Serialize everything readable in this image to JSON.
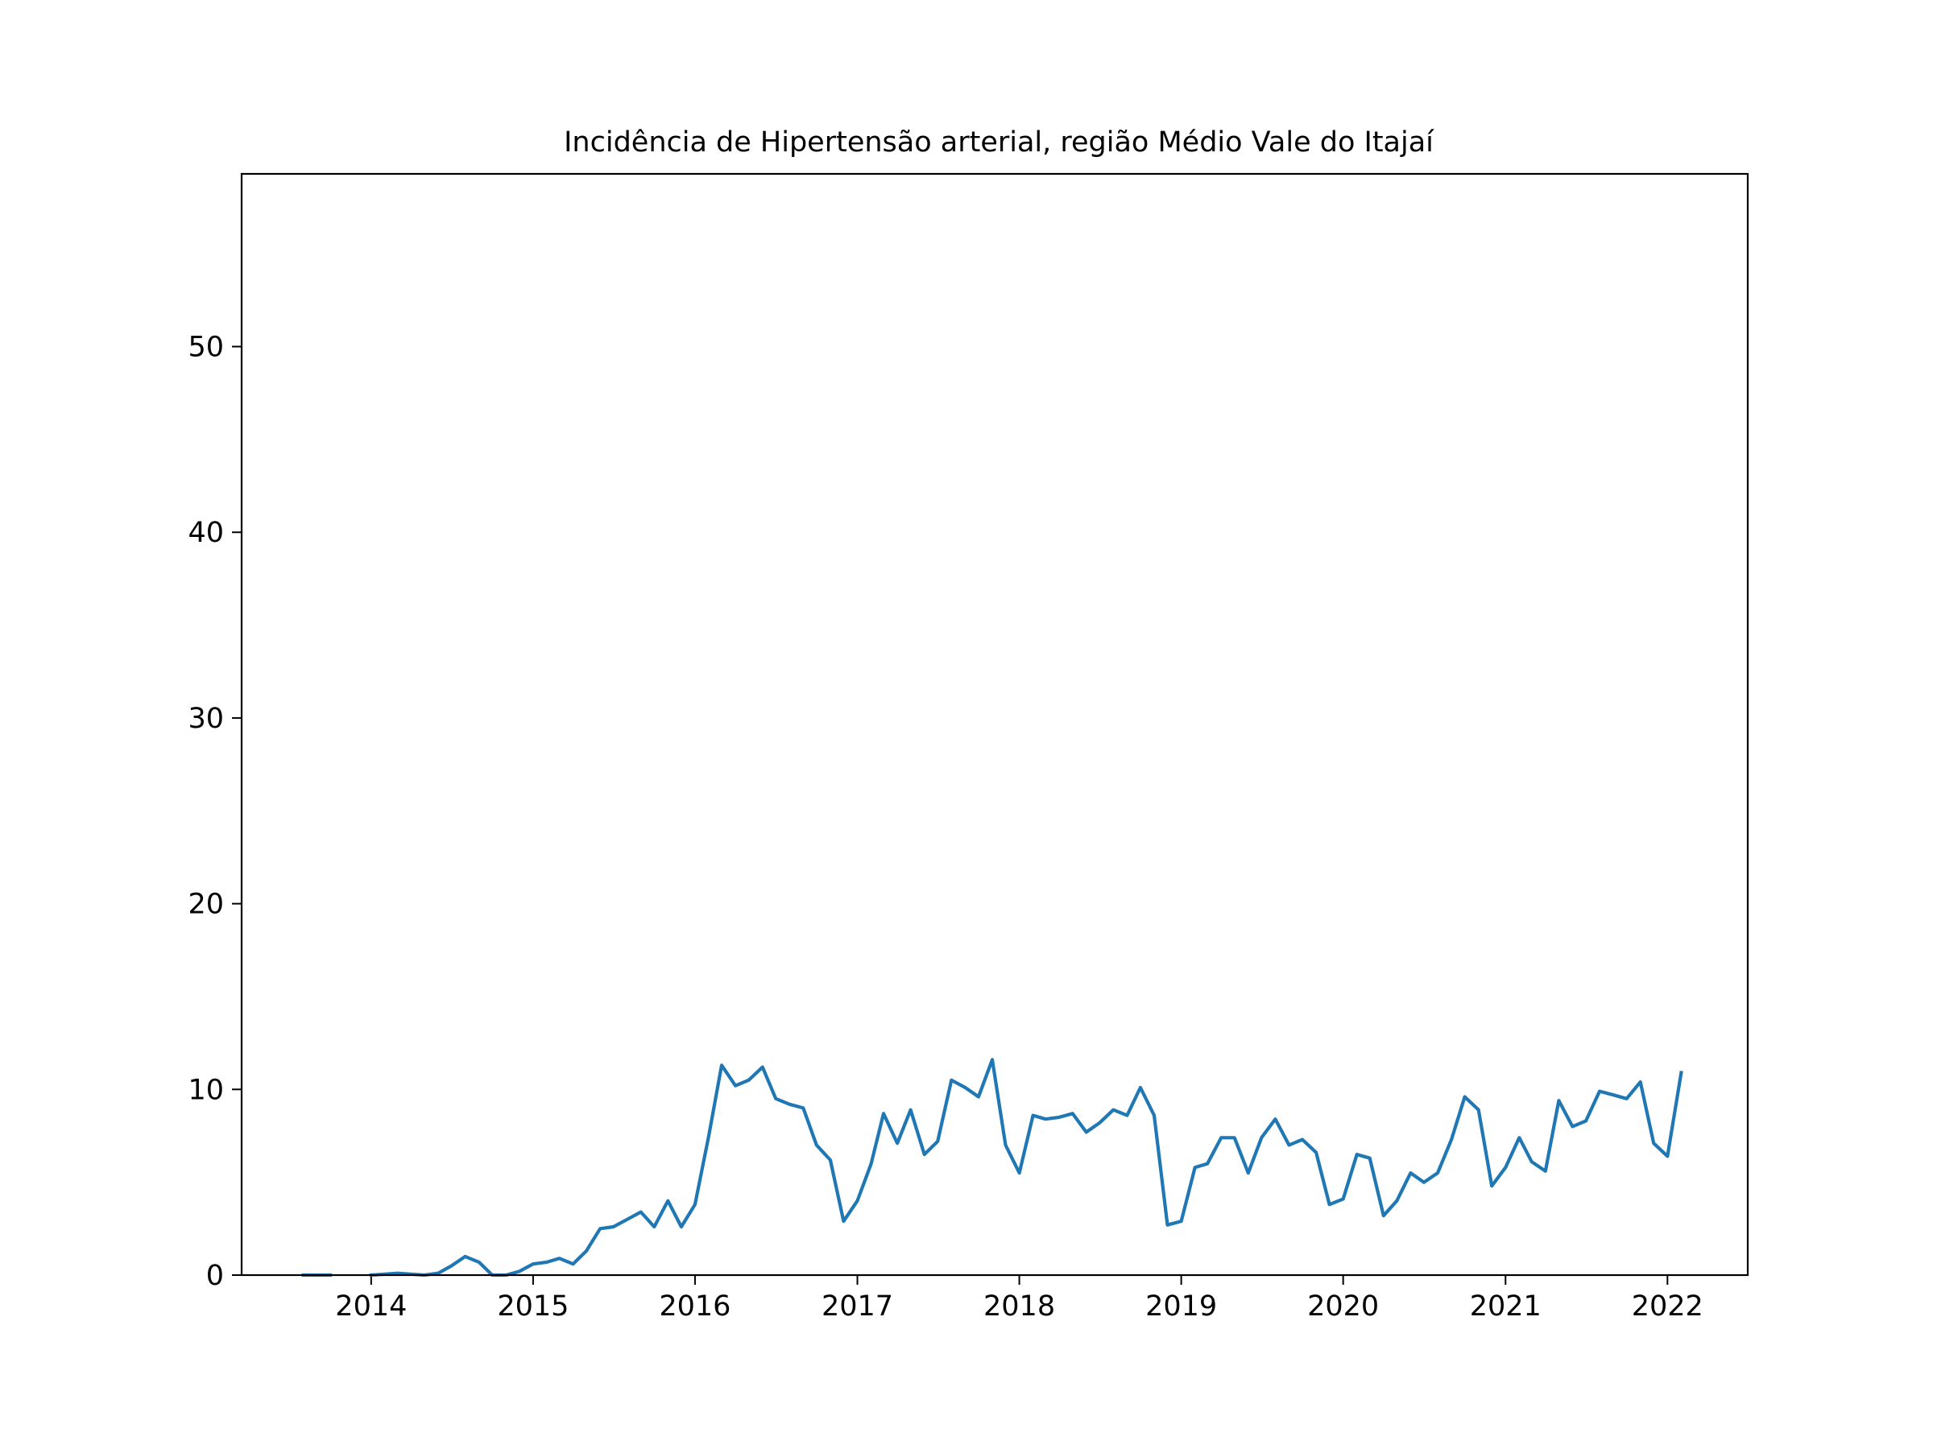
{
  "chart_data": {
    "type": "line",
    "title": "Incidência de Hipertensão arterial, região Médio Vale do Itajaí",
    "xlabel": "",
    "ylabel": "",
    "xlim": [
      "2013-03-15",
      "2022-07-01"
    ],
    "ylim": [
      0,
      59.3
    ],
    "grid": false,
    "legend": "none",
    "x_ticks": [
      "2014",
      "2015",
      "2016",
      "2017",
      "2018",
      "2019",
      "2020",
      "2021",
      "2022"
    ],
    "x_tick_dates": [
      "2014-01-01",
      "2015-01-01",
      "2016-01-01",
      "2017-01-01",
      "2018-01-01",
      "2019-01-01",
      "2020-01-01",
      "2021-01-01",
      "2022-01-01"
    ],
    "y_ticks": [
      0,
      10,
      20,
      30,
      40,
      50
    ],
    "y_tick_labels": [
      "0",
      "10",
      "20",
      "30",
      "40",
      "50"
    ],
    "line_color": "#1f77b4",
    "series": [
      {
        "segments": [
          [
            [
              "2013-08-01",
              0.0
            ],
            [
              "2013-09-01",
              0.0
            ],
            [
              "2013-10-01",
              0.0
            ]
          ],
          [
            [
              "2014-01-01",
              0.0
            ],
            [
              "2014-02-01",
              0.05
            ],
            [
              "2014-03-01",
              0.1
            ],
            [
              "2014-04-01",
              0.05
            ],
            [
              "2014-05-01",
              0.0
            ],
            [
              "2014-06-01",
              0.1
            ],
            [
              "2014-07-01",
              0.5
            ],
            [
              "2014-08-01",
              1.0
            ],
            [
              "2014-09-01",
              0.7
            ],
            [
              "2014-10-01",
              0.0
            ],
            [
              "2014-11-01",
              0.0
            ],
            [
              "2014-12-01",
              0.2
            ],
            [
              "2015-01-01",
              0.6
            ],
            [
              "2015-02-01",
              0.7
            ],
            [
              "2015-03-01",
              0.9
            ],
            [
              "2015-04-01",
              0.6
            ],
            [
              "2015-05-01",
              1.3
            ],
            [
              "2015-06-01",
              2.5
            ],
            [
              "2015-07-01",
              2.6
            ],
            [
              "2015-08-01",
              3.0
            ],
            [
              "2015-09-01",
              3.4
            ],
            [
              "2015-10-01",
              2.6
            ],
            [
              "2015-11-01",
              4.0
            ],
            [
              "2015-12-01",
              2.6
            ],
            [
              "2016-01-01",
              3.8
            ],
            [
              "2016-02-01",
              7.5
            ],
            [
              "2016-03-01",
              11.3
            ],
            [
              "2016-04-01",
              10.2
            ],
            [
              "2016-05-01",
              10.5
            ],
            [
              "2016-06-01",
              11.2
            ],
            [
              "2016-07-01",
              9.5
            ],
            [
              "2016-08-01",
              9.2
            ],
            [
              "2016-09-01",
              9.0
            ],
            [
              "2016-10-01",
              7.0
            ],
            [
              "2016-11-01",
              6.2
            ],
            [
              "2016-12-01",
              2.9
            ],
            [
              "2017-01-01",
              4.0
            ],
            [
              "2017-02-01",
              6.0
            ],
            [
              "2017-03-01",
              8.7
            ],
            [
              "2017-04-01",
              7.1
            ],
            [
              "2017-05-01",
              8.9
            ],
            [
              "2017-06-01",
              6.5
            ],
            [
              "2017-07-01",
              7.2
            ],
            [
              "2017-08-01",
              10.5
            ],
            [
              "2017-09-01",
              10.1
            ],
            [
              "2017-10-01",
              9.6
            ],
            [
              "2017-11-01",
              11.6
            ],
            [
              "2017-12-01",
              7.0
            ],
            [
              "2018-01-01",
              5.5
            ],
            [
              "2018-02-01",
              8.6
            ],
            [
              "2018-03-01",
              8.4
            ],
            [
              "2018-04-01",
              8.5
            ],
            [
              "2018-05-01",
              8.7
            ],
            [
              "2018-06-01",
              7.7
            ],
            [
              "2018-07-01",
              8.2
            ],
            [
              "2018-08-01",
              8.9
            ],
            [
              "2018-09-01",
              8.6
            ],
            [
              "2018-10-01",
              10.1
            ],
            [
              "2018-11-01",
              8.6
            ],
            [
              "2018-12-01",
              2.7
            ],
            [
              "2019-01-01",
              2.9
            ],
            [
              "2019-02-01",
              5.8
            ],
            [
              "2019-03-01",
              6.0
            ],
            [
              "2019-04-01",
              7.4
            ],
            [
              "2019-05-01",
              7.4
            ],
            [
              "2019-06-01",
              5.5
            ],
            [
              "2019-07-01",
              7.4
            ],
            [
              "2019-08-01",
              8.4
            ],
            [
              "2019-09-01",
              7.0
            ],
            [
              "2019-10-01",
              7.3
            ],
            [
              "2019-11-01",
              6.6
            ],
            [
              "2019-12-01",
              3.8
            ],
            [
              "2020-01-01",
              4.1
            ],
            [
              "2020-02-01",
              6.5
            ],
            [
              "2020-03-01",
              6.3
            ],
            [
              "2020-04-01",
              3.2
            ],
            [
              "2020-05-01",
              4.0
            ],
            [
              "2020-06-01",
              5.5
            ],
            [
              "2020-07-01",
              5.0
            ],
            [
              "2020-08-01",
              5.5
            ],
            [
              "2020-09-01",
              7.3
            ],
            [
              "2020-10-01",
              9.6
            ],
            [
              "2020-11-01",
              8.9
            ],
            [
              "2020-12-01",
              4.8
            ],
            [
              "2021-01-01",
              5.8
            ],
            [
              "2021-02-01",
              7.4
            ],
            [
              "2021-03-01",
              6.1
            ],
            [
              "2021-04-01",
              5.6
            ],
            [
              "2021-05-01",
              9.4
            ],
            [
              "2021-06-01",
              8.0
            ],
            [
              "2021-07-01",
              8.3
            ],
            [
              "2021-08-01",
              9.9
            ],
            [
              "2021-09-01",
              9.7
            ],
            [
              "2021-10-01",
              9.5
            ],
            [
              "2021-11-01",
              10.4
            ],
            [
              "2021-12-01",
              7.1
            ],
            [
              "2022-01-01",
              6.4
            ],
            [
              "2022-02-01",
              10.9
            ]
          ]
        ]
      }
    ]
  }
}
